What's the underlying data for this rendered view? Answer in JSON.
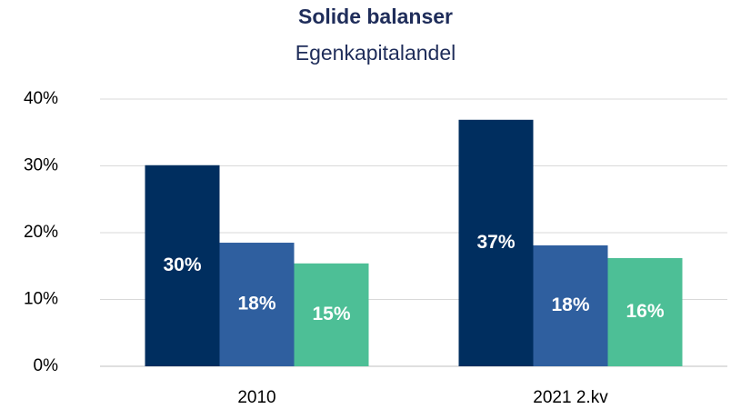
{
  "chart_data": {
    "type": "bar",
    "title": "Solide balanser",
    "subtitle": "Egenkapitalandel",
    "categories": [
      "2010",
      "2021 2.kv"
    ],
    "series": [
      {
        "color": "#002e5f",
        "values": [
          30.1,
          36.9
        ],
        "value_labels": [
          "30%",
          "37%"
        ]
      },
      {
        "color": "#2f5f9f",
        "values": [
          18.5,
          18.1
        ],
        "value_labels": [
          "18%",
          "18%"
        ]
      },
      {
        "color": "#4dbf96",
        "values": [
          15.4,
          16.2
        ],
        "value_labels": [
          "15%",
          "16%"
        ]
      }
    ],
    "ylim": [
      0,
      40
    ],
    "yticks": [
      {
        "value": 0,
        "label": "0%"
      },
      {
        "value": 10,
        "label": "10%"
      },
      {
        "value": 20,
        "label": "20%"
      },
      {
        "value": 30,
        "label": "30%"
      },
      {
        "value": 40,
        "label": "40%"
      }
    ],
    "grid": true
  }
}
